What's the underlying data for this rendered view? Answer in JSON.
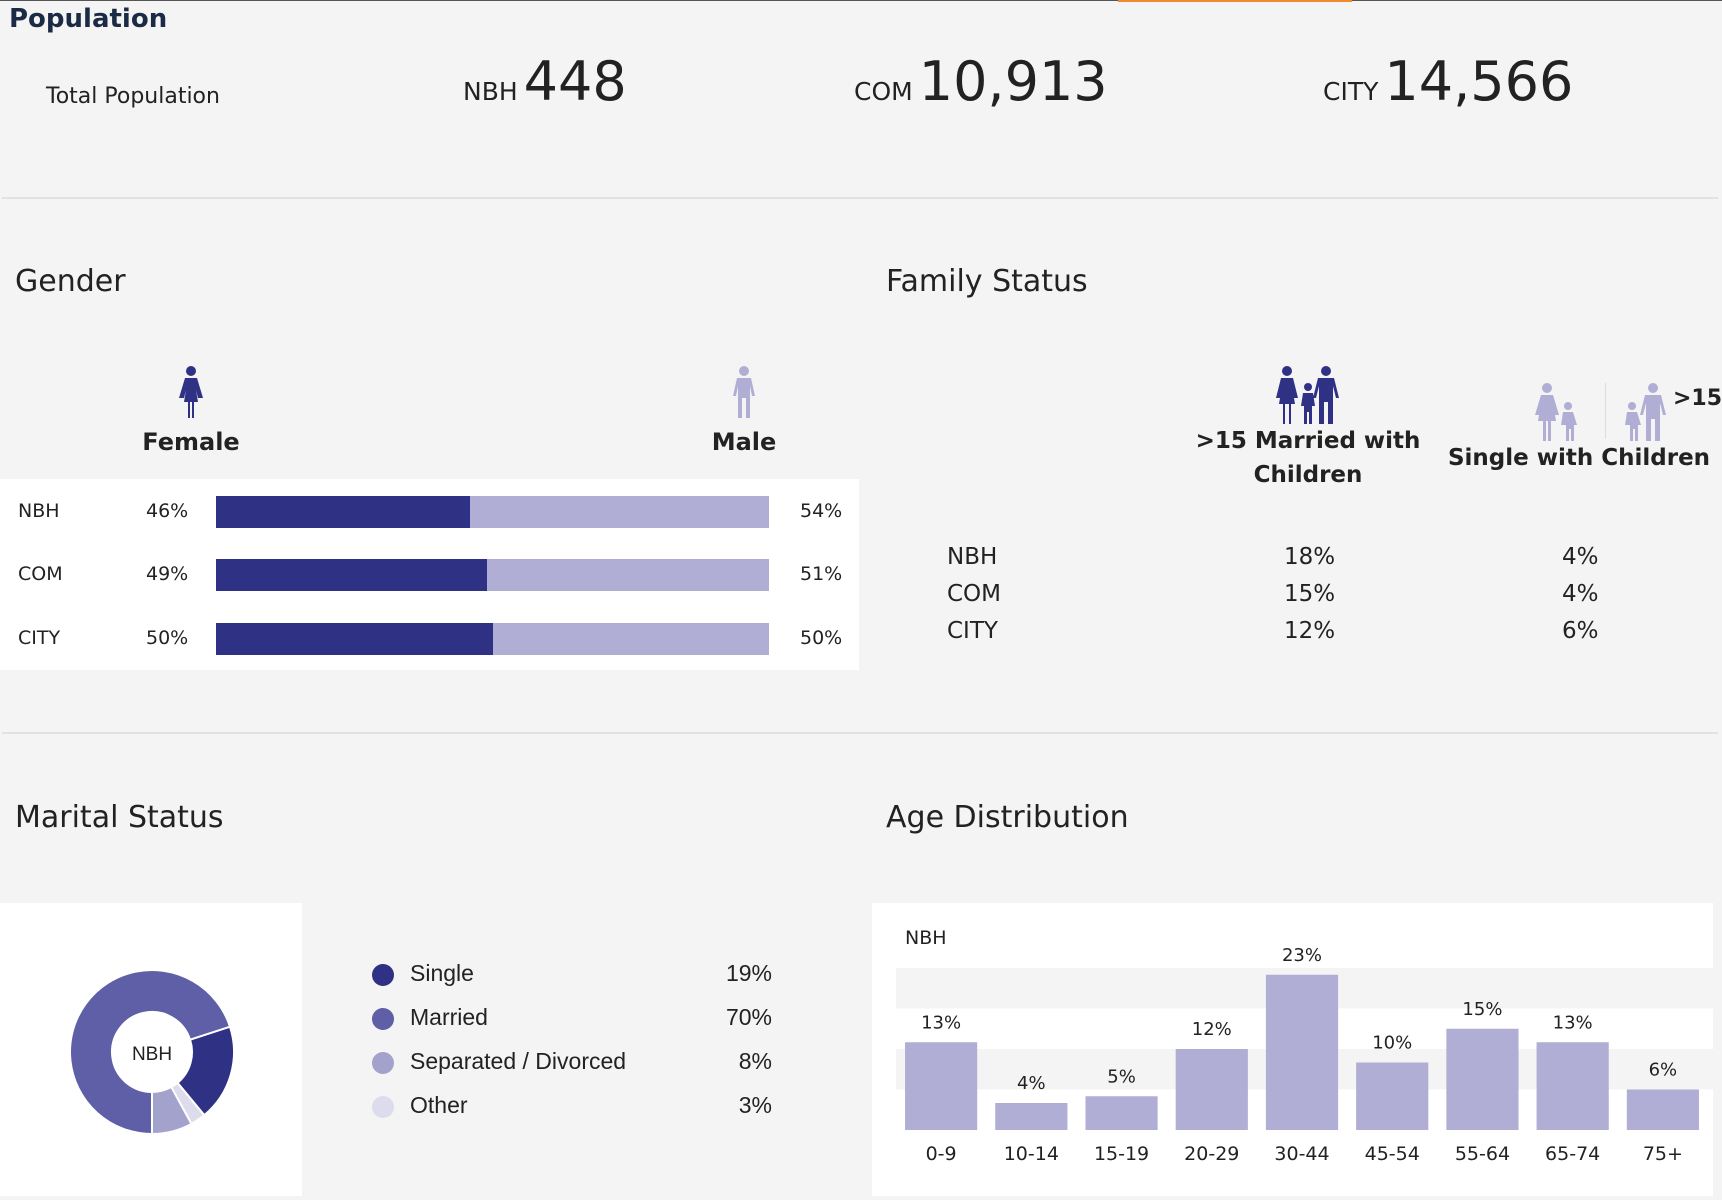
{
  "header": {
    "title": "Population",
    "total_label": "Total Population",
    "stats": [
      {
        "key": "NBH",
        "value": "448"
      },
      {
        "key": "COM",
        "value": "10,913"
      },
      {
        "key": "CITY",
        "value": "14,566"
      }
    ]
  },
  "colors": {
    "dark": "#2f3184",
    "medium": "#5e5fa6",
    "light": "#b0aed4",
    "pale": "#dcdcec",
    "accent": "#f08a2c"
  },
  "gender": {
    "heading": "Gender",
    "female_label": "Female",
    "male_label": "Male",
    "rows": [
      {
        "label": "NBH",
        "female": 46,
        "male": 54,
        "female_text": "46%",
        "male_text": "54%"
      },
      {
        "label": "COM",
        "female": 49,
        "male": 51,
        "female_text": "49%",
        "male_text": "51%"
      },
      {
        "label": "CITY",
        "female": 50,
        "male": 50,
        "female_text": "50%",
        "male_text": "50%"
      }
    ]
  },
  "family": {
    "heading": "Family Status",
    "col1_label": ">15 Married with Children",
    "col2_label": "Single with Children",
    "col2_badge": ">15",
    "rows": [
      {
        "label": "NBH",
        "married": "18%",
        "single": "4%"
      },
      {
        "label": "COM",
        "married": "15%",
        "single": "4%"
      },
      {
        "label": "CITY",
        "married": "12%",
        "single": "6%"
      }
    ]
  },
  "marital": {
    "heading": "Marital Status",
    "center_label": "NBH"
  },
  "age": {
    "heading": "Age Distribution",
    "series_label": "NBH"
  },
  "chart_data": [
    {
      "type": "pie",
      "title": "Marital Status",
      "center_label": "NBH",
      "categories": [
        "Single",
        "Married",
        "Separated / Divorced",
        "Other"
      ],
      "values": [
        19,
        70,
        8,
        3
      ],
      "labels": [
        "19%",
        "70%",
        "8%",
        "3%"
      ],
      "colors": [
        "#2f3184",
        "#5e5fa6",
        "#a3a2cc",
        "#dcdcec"
      ],
      "legend": "right"
    },
    {
      "type": "bar",
      "title": "Age Distribution",
      "series": [
        {
          "name": "NBH",
          "values": [
            13,
            4,
            5,
            12,
            23,
            10,
            15,
            13,
            6
          ]
        }
      ],
      "categories": [
        "0-9",
        "10-14",
        "15-19",
        "20-29",
        "30-44",
        "45-54",
        "55-64",
        "65-74",
        "75+"
      ],
      "labels": [
        "13%",
        "4%",
        "5%",
        "12%",
        "23%",
        "10%",
        "15%",
        "13%",
        "6%"
      ],
      "xlabel": "",
      "ylabel": "",
      "ylim": [
        0,
        24
      ],
      "grid": "alternating bands every 6"
    }
  ]
}
